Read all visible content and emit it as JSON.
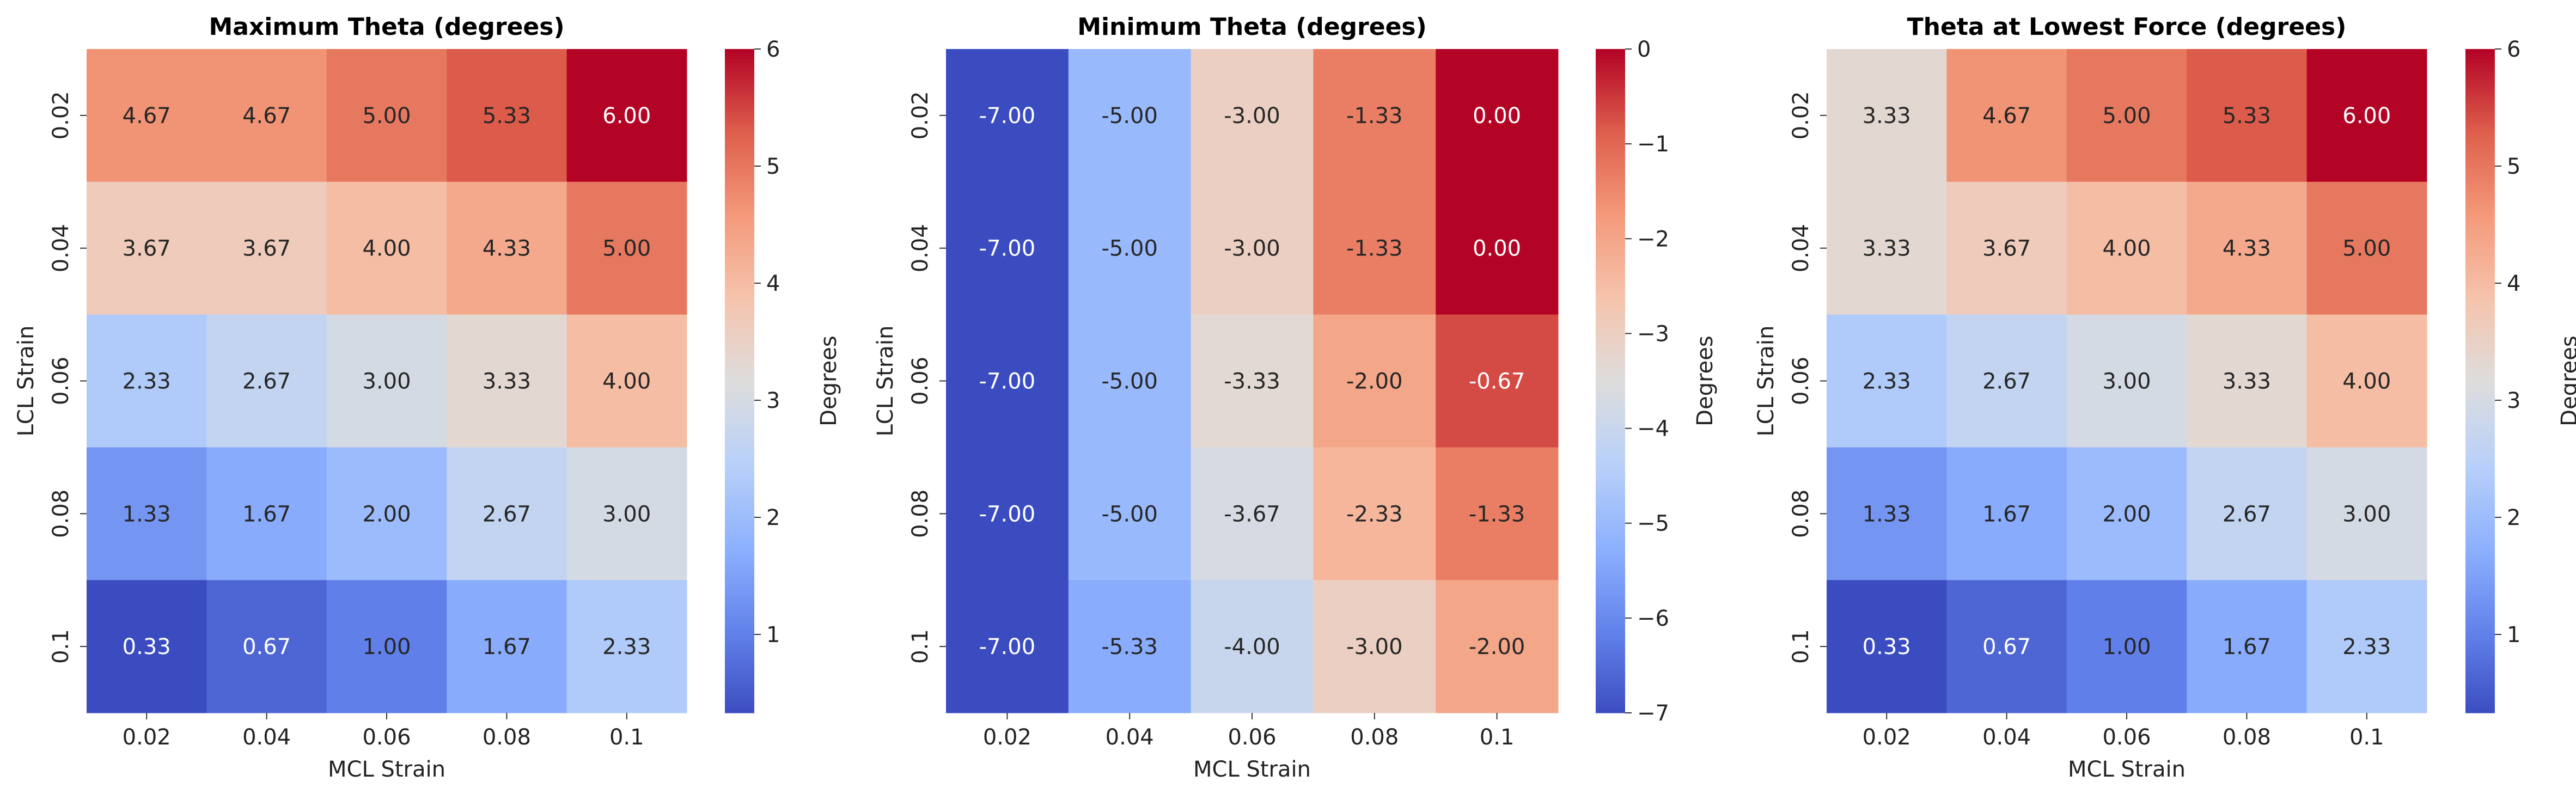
{
  "chart_data": [
    {
      "type": "heatmap",
      "title": "Maximum Theta (degrees)",
      "xlabel": "MCL Strain",
      "ylabel": "LCL Strain",
      "x_categories": [
        "0.02",
        "0.04",
        "0.06",
        "0.08",
        "0.1"
      ],
      "y_categories": [
        "0.02",
        "0.04",
        "0.06",
        "0.08",
        "0.1"
      ],
      "values": [
        [
          4.67,
          4.67,
          5.0,
          5.33,
          6.0
        ],
        [
          3.67,
          3.67,
          4.0,
          4.33,
          5.0
        ],
        [
          2.33,
          2.67,
          3.0,
          3.33,
          4.0
        ],
        [
          1.33,
          1.67,
          2.0,
          2.67,
          3.0
        ],
        [
          0.33,
          0.67,
          1.0,
          1.67,
          2.33
        ]
      ],
      "annotation_format": "2 decimals",
      "colormap": "coolwarm",
      "color_range": [
        0.33,
        6.0
      ],
      "colorbar": {
        "label": "Degrees",
        "ticks": [
          1,
          2,
          3,
          4,
          5,
          6
        ]
      }
    },
    {
      "type": "heatmap",
      "title": "Minimum Theta (degrees)",
      "xlabel": "MCL Strain",
      "ylabel": "LCL Strain",
      "x_categories": [
        "0.02",
        "0.04",
        "0.06",
        "0.08",
        "0.1"
      ],
      "y_categories": [
        "0.02",
        "0.04",
        "0.06",
        "0.08",
        "0.1"
      ],
      "values": [
        [
          -7.0,
          -5.0,
          -3.0,
          -1.33,
          0.0
        ],
        [
          -7.0,
          -5.0,
          -3.0,
          -1.33,
          0.0
        ],
        [
          -7.0,
          -5.0,
          -3.33,
          -2.0,
          -0.67
        ],
        [
          -7.0,
          -5.0,
          -3.67,
          -2.33,
          -1.33
        ],
        [
          -7.0,
          -5.33,
          -4.0,
          -3.0,
          -2.0
        ]
      ],
      "annotation_format": "2 decimals",
      "colormap": "coolwarm",
      "color_range": [
        -7.0,
        0.0
      ],
      "colorbar": {
        "label": "Degrees",
        "ticks": [
          -7,
          -6,
          -5,
          -4,
          -3,
          -2,
          -1,
          0
        ]
      }
    },
    {
      "type": "heatmap",
      "title": "Theta at Lowest Force (degrees)",
      "xlabel": "MCL Strain",
      "ylabel": "LCL Strain",
      "x_categories": [
        "0.02",
        "0.04",
        "0.06",
        "0.08",
        "0.1"
      ],
      "y_categories": [
        "0.02",
        "0.04",
        "0.06",
        "0.08",
        "0.1"
      ],
      "values": [
        [
          3.33,
          4.67,
          5.0,
          5.33,
          6.0
        ],
        [
          3.33,
          3.67,
          4.0,
          4.33,
          5.0
        ],
        [
          2.33,
          2.67,
          3.0,
          3.33,
          4.0
        ],
        [
          1.33,
          1.67,
          2.0,
          2.67,
          3.0
        ],
        [
          0.33,
          0.67,
          1.0,
          1.67,
          2.33
        ]
      ],
      "annotation_format": "2 decimals",
      "colormap": "coolwarm",
      "color_range": [
        0.33,
        6.0
      ],
      "colorbar": {
        "label": "Degrees",
        "ticks": [
          1,
          2,
          3,
          4,
          5,
          6
        ]
      }
    }
  ]
}
